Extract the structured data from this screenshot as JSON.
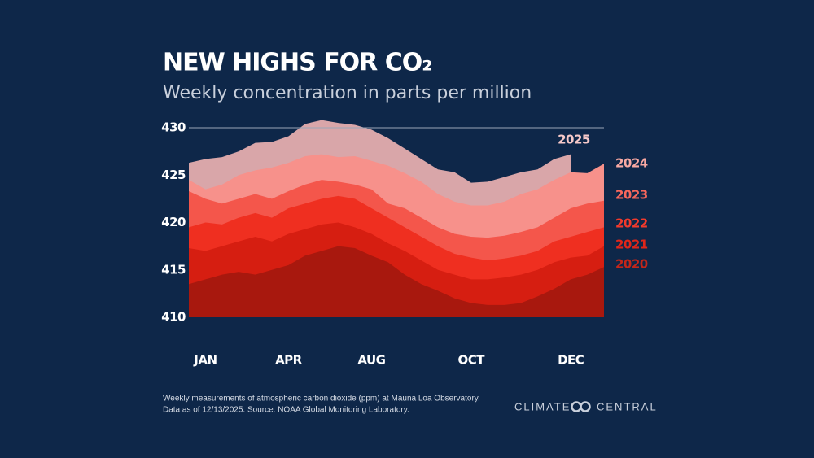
{
  "chart_data": {
    "type": "area",
    "title": "NEW HIGHS FOR CO₂",
    "subtitle": "Weekly concentration in parts per million",
    "categories": [
      null,
      "JAN",
      null,
      null,
      null,
      null,
      "APR",
      null,
      null,
      null,
      null,
      "AUG",
      null,
      null,
      null,
      null,
      null,
      "OCT",
      null,
      null,
      null,
      null,
      null,
      "DEC",
      null,
      null
    ],
    "ylim": [
      410,
      430
    ],
    "yticks": [
      410,
      415,
      420,
      425,
      430
    ],
    "series": [
      {
        "name": "2025",
        "color": "#d9a6a9",
        "label_color": "#f6c9c9",
        "values": [
          426.3,
          426.7,
          426.9,
          427.5,
          428.4,
          428.5,
          429.1,
          430.4,
          430.8,
          430.5,
          430.3,
          429.8,
          428.9,
          427.8,
          426.7,
          425.6,
          425.3,
          424.2,
          424.3,
          424.8,
          425.3,
          425.6,
          426.7,
          427.2,
          null,
          null
        ]
      },
      {
        "name": "2024",
        "color": "#f7918b",
        "label_color": "#f9a9a3",
        "values": [
          424.5,
          423.5,
          424.0,
          425.0,
          425.5,
          425.8,
          426.3,
          427.0,
          427.2,
          426.9,
          427.0,
          426.5,
          426.0,
          425.2,
          424.3,
          423.0,
          422.2,
          421.8,
          421.8,
          422.2,
          423.0,
          423.5,
          424.5,
          425.3,
          425.2,
          426.2
        ]
      },
      {
        "name": "2023",
        "color": "#f4564b",
        "label_color": "#f7675c",
        "values": [
          423.3,
          422.5,
          422.0,
          422.5,
          423.0,
          422.5,
          423.3,
          424.0,
          424.5,
          424.3,
          424.0,
          423.5,
          422.0,
          421.5,
          420.5,
          419.5,
          418.8,
          418.5,
          418.4,
          418.6,
          419.0,
          419.5,
          420.5,
          421.5,
          422.0,
          422.3
        ]
      },
      {
        "name": "2022",
        "color": "#ef2f20",
        "label_color": "#f23a2c",
        "values": [
          419.5,
          420.0,
          419.8,
          420.5,
          421.0,
          420.5,
          421.5,
          422.0,
          422.5,
          422.8,
          422.5,
          421.5,
          420.5,
          419.5,
          418.5,
          417.5,
          416.7,
          416.3,
          416.0,
          416.2,
          416.5,
          417.0,
          418.0,
          418.5,
          419.0,
          419.5
        ]
      },
      {
        "name": "2021",
        "color": "#d61e11",
        "label_color": "#e0261a",
        "values": [
          417.3,
          417.0,
          417.5,
          418.0,
          418.5,
          418.0,
          418.8,
          419.3,
          419.8,
          420.0,
          419.5,
          418.8,
          417.8,
          417.0,
          416.0,
          415.0,
          414.5,
          414.0,
          414.0,
          414.2,
          414.5,
          415.0,
          415.8,
          416.3,
          416.5,
          417.5
        ]
      },
      {
        "name": "2020",
        "color": "#a8180e",
        "label_color": "#c3261a",
        "values": [
          413.5,
          414.0,
          414.5,
          414.8,
          414.5,
          415.0,
          415.5,
          416.5,
          417.0,
          417.5,
          417.3,
          416.5,
          415.8,
          414.5,
          413.5,
          412.8,
          412.0,
          411.5,
          411.3,
          411.3,
          411.5,
          412.2,
          413.0,
          414.0,
          414.5,
          415.3
        ]
      }
    ],
    "footnote": [
      "Weekly measurements of atmospheric carbon dioxide (ppm) at Mauna Loa Observatory.",
      "Data as of 12/13/2025. Source: NOAA Global Monitoring Laboratory."
    ],
    "brand": [
      "CLIMATE",
      "CENTRAL"
    ]
  }
}
